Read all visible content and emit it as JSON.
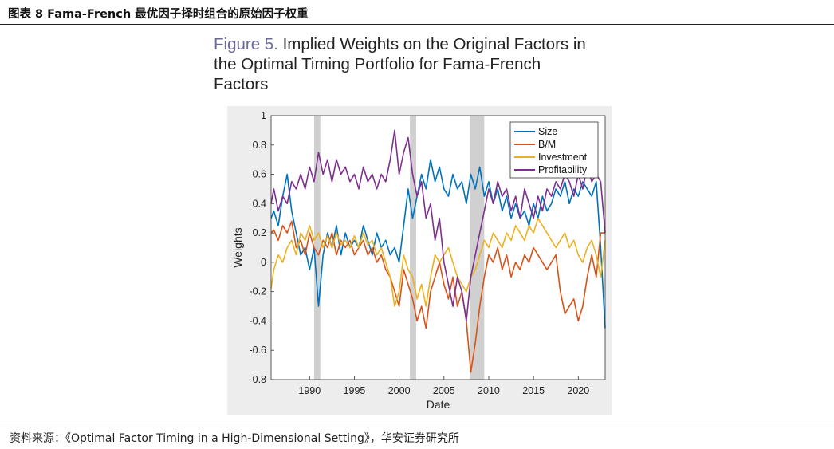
{
  "header": {
    "title": "图表 8 Fama-French 最优因子择时组合的原始因子权重"
  },
  "figure": {
    "number": "Figure 5.",
    "title_lines": [
      "Implied Weights on the Original Factors in",
      "the Optimal Timing Portfolio for Fama-French",
      "Factors"
    ]
  },
  "footer": {
    "source": "资料来源：《Optimal Factor Timing in a High-Dimensional Setting》，华安证券研究所"
  },
  "chart_data": {
    "type": "line",
    "title": "Implied Weights on the Original Factors in the Optimal Timing Portfolio for Fama-French Factors",
    "xlabel": "Date",
    "ylabel": "Weights",
    "xlim": [
      1985.7,
      2023.0
    ],
    "ylim": [
      -0.8,
      1.0
    ],
    "xticks": [
      1990,
      1995,
      2000,
      2005,
      2010,
      2015,
      2020
    ],
    "yticks": [
      -0.8,
      -0.6,
      -0.4,
      -0.2,
      0,
      0.2,
      0.4,
      0.6,
      0.8,
      1
    ],
    "recessions": [
      [
        1990.5,
        1991.2
      ],
      [
        2001.2,
        2001.9
      ],
      [
        2007.9,
        2009.5
      ]
    ],
    "legend_position": "top-right",
    "colors": {
      "Size": "#0072BD",
      "B/M": "#D95319",
      "Investment": "#EDB120",
      "Profitability": "#7E2F8E"
    },
    "series": [
      {
        "name": "Size",
        "x": [
          1985.7,
          1986,
          1986.5,
          1987,
          1987.5,
          1988,
          1988.5,
          1989,
          1989.5,
          1990,
          1990.5,
          1991,
          1991.5,
          1992,
          1992.5,
          1993,
          1993.5,
          1994,
          1994.5,
          1995,
          1995.5,
          1996,
          1996.5,
          1997,
          1997.5,
          1998,
          1998.5,
          1999,
          1999.5,
          2000,
          2000.5,
          2001,
          2001.5,
          2002,
          2002.5,
          2003,
          2003.5,
          2004,
          2004.5,
          2005,
          2005.5,
          2006,
          2006.5,
          2007,
          2007.5,
          2008,
          2008.5,
          2009,
          2009.5,
          2010,
          2010.5,
          2011,
          2011.5,
          2012,
          2012.5,
          2013,
          2013.5,
          2014,
          2014.5,
          2015,
          2015.5,
          2016,
          2016.5,
          2017,
          2017.5,
          2018,
          2018.5,
          2019,
          2019.5,
          2020,
          2020.5,
          2021,
          2021.5,
          2022,
          2022.5,
          2023
        ],
        "values": [
          0.3,
          0.35,
          0.25,
          0.45,
          0.6,
          0.35,
          0.2,
          0.05,
          0.1,
          -0.05,
          0.1,
          -0.3,
          0.05,
          0.2,
          0.1,
          0.25,
          0.05,
          0.2,
          0.1,
          0.15,
          0.1,
          0.25,
          0.15,
          0.05,
          0.2,
          0.1,
          0.15,
          0.05,
          0.1,
          0.0,
          0.25,
          0.5,
          0.3,
          0.45,
          0.6,
          0.5,
          0.7,
          0.55,
          0.65,
          0.5,
          0.45,
          0.6,
          0.5,
          0.55,
          0.4,
          0.6,
          0.5,
          0.65,
          0.45,
          0.55,
          0.4,
          0.5,
          0.35,
          0.45,
          0.3,
          0.4,
          0.3,
          0.35,
          0.25,
          0.4,
          0.3,
          0.45,
          0.35,
          0.4,
          0.5,
          0.45,
          0.55,
          0.4,
          0.5,
          0.45,
          0.55,
          0.5,
          0.45,
          0.55,
          0.1,
          -0.45
        ]
      },
      {
        "name": "B/M",
        "x": [
          1985.7,
          1986,
          1986.5,
          1987,
          1987.5,
          1988,
          1988.5,
          1989,
          1989.5,
          1990,
          1990.5,
          1991,
          1991.5,
          1992,
          1992.5,
          1993,
          1993.5,
          1994,
          1994.5,
          1995,
          1995.5,
          1996,
          1996.5,
          1997,
          1997.5,
          1998,
          1998.5,
          1999,
          1999.5,
          2000,
          2000.5,
          2001,
          2001.5,
          2002,
          2002.5,
          2003,
          2003.5,
          2004,
          2004.5,
          2005,
          2005.5,
          2006,
          2006.5,
          2007,
          2007.5,
          2008,
          2008.5,
          2009,
          2009.5,
          2010,
          2010.5,
          2011,
          2011.5,
          2012,
          2012.5,
          2013,
          2013.5,
          2014,
          2014.5,
          2015,
          2015.5,
          2016,
          2016.5,
          2017,
          2017.5,
          2018,
          2018.5,
          2019,
          2019.5,
          2020,
          2020.5,
          2021,
          2021.5,
          2022,
          2022.5,
          2023
        ],
        "values": [
          0.2,
          0.22,
          0.15,
          0.25,
          0.2,
          0.28,
          0.1,
          0.15,
          0.05,
          0.2,
          0.1,
          0.05,
          0.15,
          0.1,
          0.2,
          0.05,
          0.15,
          0.1,
          0.15,
          0.05,
          0.1,
          0.15,
          0.05,
          0.1,
          0.0,
          0.05,
          -0.05,
          -0.1,
          -0.2,
          -0.3,
          -0.05,
          -0.15,
          -0.25,
          -0.4,
          -0.3,
          -0.45,
          -0.2,
          -0.1,
          0.0,
          -0.15,
          -0.25,
          -0.1,
          -0.3,
          -0.2,
          -0.4,
          -0.75,
          -0.55,
          -0.3,
          -0.1,
          0.05,
          0.0,
          0.1,
          -0.05,
          0.05,
          -0.1,
          0.0,
          -0.05,
          0.05,
          0.0,
          0.1,
          0.05,
          0.0,
          -0.05,
          0.0,
          0.05,
          -0.2,
          -0.35,
          -0.3,
          -0.25,
          -0.4,
          -0.3,
          -0.1,
          0.05,
          -0.1,
          0.2,
          0.2
        ]
      },
      {
        "name": "Investment",
        "x": [
          1985.7,
          1986,
          1986.5,
          1987,
          1987.5,
          1988,
          1988.5,
          1989,
          1989.5,
          1990,
          1990.5,
          1991,
          1991.5,
          1992,
          1992.5,
          1993,
          1993.5,
          1994,
          1994.5,
          1995,
          1995.5,
          1996,
          1996.5,
          1997,
          1997.5,
          1998,
          1998.5,
          1999,
          1999.5,
          2000,
          2000.5,
          2001,
          2001.5,
          2002,
          2002.5,
          2003,
          2003.5,
          2004,
          2004.5,
          2005,
          2005.5,
          2006,
          2006.5,
          2007,
          2007.5,
          2008,
          2008.5,
          2009,
          2009.5,
          2010,
          2010.5,
          2011,
          2011.5,
          2012,
          2012.5,
          2013,
          2013.5,
          2014,
          2014.5,
          2015,
          2015.5,
          2016,
          2016.5,
          2017,
          2017.5,
          2018,
          2018.5,
          2019,
          2019.5,
          2020,
          2020.5,
          2021,
          2021.5,
          2022,
          2022.5,
          2023
        ],
        "values": [
          -0.18,
          -0.05,
          0.05,
          0.0,
          0.1,
          0.15,
          0.05,
          0.2,
          0.15,
          0.25,
          0.15,
          0.2,
          0.1,
          0.18,
          0.1,
          0.2,
          0.12,
          0.15,
          0.1,
          0.18,
          0.1,
          0.2,
          0.12,
          0.15,
          0.05,
          0.1,
          0.0,
          -0.1,
          -0.3,
          -0.2,
          0.05,
          -0.05,
          -0.1,
          -0.25,
          -0.15,
          -0.3,
          -0.1,
          0.05,
          0.0,
          0.05,
          0.1,
          0.0,
          -0.1,
          -0.15,
          -0.2,
          -0.1,
          -0.05,
          0.05,
          0.15,
          0.1,
          0.2,
          0.15,
          0.1,
          0.2,
          0.15,
          0.25,
          0.2,
          0.15,
          0.25,
          0.2,
          0.3,
          0.25,
          0.2,
          0.15,
          0.1,
          0.15,
          0.2,
          0.1,
          0.15,
          0.05,
          0.0,
          0.1,
          0.15,
          0.05,
          -0.1,
          0.15
        ]
      },
      {
        "name": "Profitability",
        "x": [
          1985.7,
          1986,
          1986.5,
          1987,
          1987.5,
          1988,
          1988.5,
          1989,
          1989.5,
          1990,
          1990.5,
          1991,
          1991.5,
          1992,
          1992.5,
          1993,
          1993.5,
          1994,
          1994.5,
          1995,
          1995.5,
          1996,
          1996.5,
          1997,
          1997.5,
          1998,
          1998.5,
          1999,
          1999.5,
          2000,
          2000.5,
          2001,
          2001.5,
          2002,
          2002.5,
          2003,
          2003.5,
          2004,
          2004.5,
          2005,
          2005.5,
          2006,
          2006.5,
          2007,
          2007.5,
          2008,
          2008.5,
          2009,
          2009.5,
          2010,
          2010.5,
          2011,
          2011.5,
          2012,
          2012.5,
          2013,
          2013.5,
          2014,
          2014.5,
          2015,
          2015.5,
          2016,
          2016.5,
          2017,
          2017.5,
          2018,
          2018.5,
          2019,
          2019.5,
          2020,
          2020.5,
          2021,
          2021.5,
          2022,
          2022.5,
          2023
        ],
        "values": [
          0.4,
          0.5,
          0.35,
          0.45,
          0.4,
          0.55,
          0.5,
          0.6,
          0.5,
          0.65,
          0.55,
          0.75,
          0.6,
          0.7,
          0.55,
          0.7,
          0.6,
          0.65,
          0.55,
          0.6,
          0.5,
          0.65,
          0.55,
          0.6,
          0.5,
          0.6,
          0.55,
          0.7,
          0.9,
          0.6,
          0.75,
          0.85,
          0.6,
          0.45,
          0.55,
          0.3,
          0.4,
          0.15,
          0.3,
          0.0,
          -0.15,
          -0.3,
          -0.1,
          -0.2,
          -0.4,
          -0.1,
          0.05,
          0.2,
          0.35,
          0.5,
          0.4,
          0.55,
          0.45,
          0.5,
          0.35,
          0.45,
          0.3,
          0.5,
          0.4,
          0.3,
          0.45,
          0.35,
          0.5,
          0.45,
          0.55,
          0.5,
          0.6,
          0.55,
          0.45,
          0.6,
          0.5,
          0.65,
          0.55,
          0.6,
          0.55,
          0.2
        ]
      }
    ]
  }
}
